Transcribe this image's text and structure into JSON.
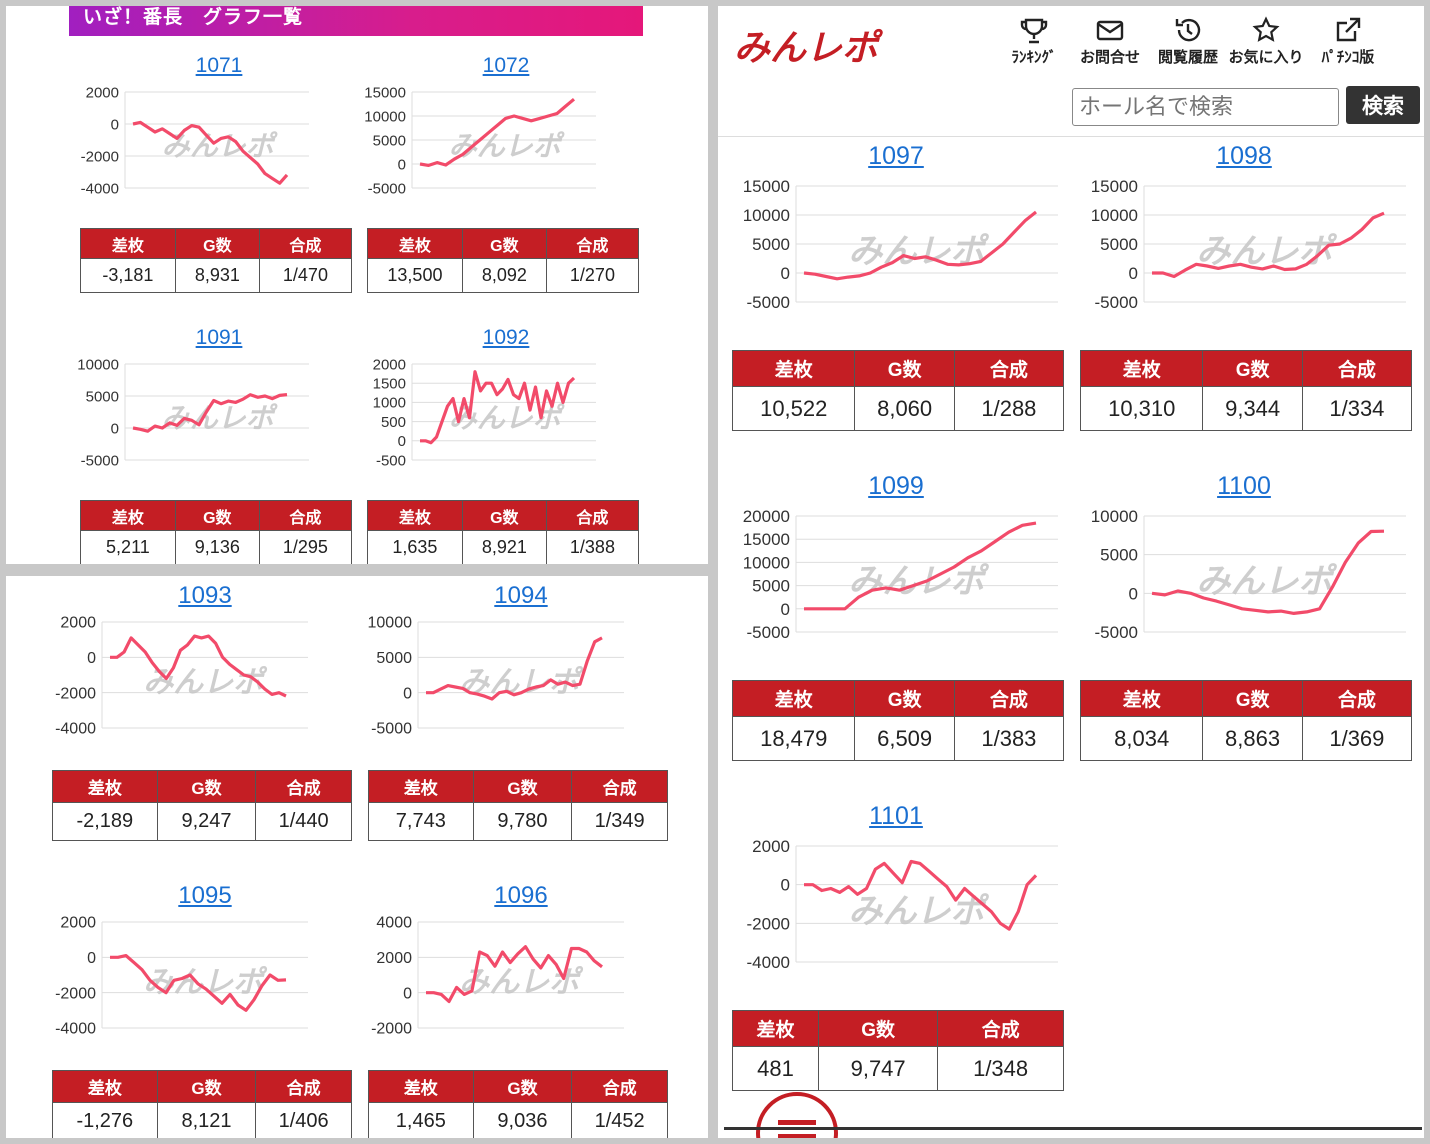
{
  "left_header": {
    "title": "いざ！番長　グラフ一覧"
  },
  "watermark": "みんレポ",
  "table_headers": [
    "差枚",
    "G数",
    "合成"
  ],
  "site": {
    "logo": "みんレポ",
    "nav": [
      {
        "label": "ﾗﾝｷﾝｸﾞ",
        "icon": "trophy-icon"
      },
      {
        "label": "お問合せ",
        "icon": "mail-icon"
      },
      {
        "label": "閲覧履歴",
        "icon": "history-icon"
      },
      {
        "label": "お気に入り",
        "icon": "star-icon"
      },
      {
        "label": "ﾊﾟﾁﾝｺ版",
        "icon": "external-link-icon"
      }
    ],
    "search_placeholder": "ホール名で検索",
    "search_button": "検索"
  },
  "colors": {
    "line": "#f24b6a",
    "table_header": "#c41e24",
    "link": "#1a6fd1"
  },
  "machines": [
    {
      "id": "1071",
      "diff": "-3,181",
      "games": "8,931",
      "ratio": "1/470"
    },
    {
      "id": "1072",
      "diff": "13,500",
      "games": "8,092",
      "ratio": "1/270"
    },
    {
      "id": "1091",
      "diff": "5,211",
      "games": "9,136",
      "ratio": "1/295"
    },
    {
      "id": "1092",
      "diff": "1,635",
      "games": "8,921",
      "ratio": "1/388"
    },
    {
      "id": "1093",
      "diff": "-2,189",
      "games": "9,247",
      "ratio": "1/440"
    },
    {
      "id": "1094",
      "diff": "7,743",
      "games": "9,780",
      "ratio": "1/349"
    },
    {
      "id": "1095",
      "diff": "-1,276",
      "games": "8,121",
      "ratio": "1/406"
    },
    {
      "id": "1096",
      "diff": "1,465",
      "games": "9,036",
      "ratio": "1/452"
    },
    {
      "id": "1097",
      "diff": "10,522",
      "games": "8,060",
      "ratio": "1/288"
    },
    {
      "id": "1098",
      "diff": "10,310",
      "games": "9,344",
      "ratio": "1/334"
    },
    {
      "id": "1099",
      "diff": "18,479",
      "games": "6,509",
      "ratio": "1/383"
    },
    {
      "id": "1100",
      "diff": "8,034",
      "games": "8,863",
      "ratio": "1/369"
    },
    {
      "id": "1101",
      "diff": "481",
      "games": "9,747",
      "ratio": "1/348"
    }
  ],
  "chart_data": [
    {
      "type": "line",
      "id": "1071",
      "ylim": [
        -4000,
        2000
      ],
      "ticks": [
        "2000",
        "0",
        "-2000",
        "-4000"
      ],
      "tickvals": [
        2000,
        0,
        -2000,
        -4000
      ],
      "values": [
        0,
        100,
        -200,
        -500,
        -300,
        -600,
        -900,
        -400,
        -100,
        -200,
        -700,
        -1200,
        -900,
        -800,
        -1100,
        -1700,
        -2100,
        -2500,
        -3100,
        -3400,
        -3700,
        -3181
      ]
    },
    {
      "type": "line",
      "id": "1072",
      "ylim": [
        -5000,
        15000
      ],
      "ticks": [
        "15000",
        "10000",
        "5000",
        "0",
        "-5000"
      ],
      "tickvals": [
        15000,
        10000,
        5000,
        0,
        -5000
      ],
      "values": [
        0,
        -300,
        300,
        -200,
        1000,
        2000,
        3500,
        5000,
        6500,
        8000,
        9500,
        10000,
        9500,
        9000,
        9500,
        10000,
        10500,
        12000,
        13500
      ]
    },
    {
      "type": "line",
      "id": "1091",
      "ylim": [
        -5000,
        10000
      ],
      "ticks": [
        "10000",
        "5000",
        "0",
        "-5000"
      ],
      "tickvals": [
        10000,
        5000,
        0,
        -5000
      ],
      "values": [
        0,
        -200,
        -500,
        300,
        0,
        800,
        400,
        1500,
        1200,
        500,
        2500,
        4300,
        3800,
        4200,
        4000,
        4500,
        5200,
        4800,
        5000,
        4600,
        5100,
        5211
      ]
    },
    {
      "type": "line",
      "id": "1092",
      "ylim": [
        -500,
        2000
      ],
      "ticks": [
        "2000",
        "1500",
        "1000",
        "500",
        "0",
        "-500"
      ],
      "tickvals": [
        2000,
        1500,
        1000,
        500,
        0,
        -500
      ],
      "values": [
        0,
        0,
        -50,
        100,
        500,
        900,
        1100,
        500,
        1100,
        600,
        1800,
        1300,
        1500,
        1500,
        1200,
        1350,
        1600,
        1200,
        1100,
        1500,
        800,
        1400,
        600,
        1300,
        900,
        1500,
        1000,
        1500,
        1635
      ]
    },
    {
      "type": "line",
      "id": "1093",
      "ylim": [
        -4000,
        2000
      ],
      "ticks": [
        "2000",
        "0",
        "-2000",
        "-4000"
      ],
      "tickvals": [
        2000,
        0,
        -2000,
        -4000
      ],
      "values": [
        0,
        0,
        300,
        1100,
        700,
        300,
        -300,
        -800,
        -1200,
        -600,
        400,
        700,
        1200,
        1100,
        1200,
        800,
        0,
        -400,
        -700,
        -1000,
        -1100,
        -1400,
        -1800,
        -2100,
        -2000,
        -2189
      ]
    },
    {
      "type": "line",
      "id": "1094",
      "ylim": [
        -5000,
        10000
      ],
      "ticks": [
        "10000",
        "5000",
        "0",
        "-5000"
      ],
      "tickvals": [
        10000,
        5000,
        0,
        -5000
      ],
      "values": [
        0,
        0,
        500,
        1000,
        800,
        600,
        0,
        -200,
        -500,
        -900,
        0,
        200,
        -300,
        0,
        500,
        800,
        1000,
        1800,
        1200,
        1500,
        1000,
        1200,
        4500,
        7200,
        7743
      ]
    },
    {
      "type": "line",
      "id": "1095",
      "ylim": [
        -4000,
        2000
      ],
      "ticks": [
        "2000",
        "0",
        "-2000",
        "-4000"
      ],
      "tickvals": [
        2000,
        0,
        -2000,
        -4000
      ],
      "values": [
        0,
        0,
        100,
        -300,
        -700,
        -1300,
        -1700,
        -2000,
        -1300,
        -1200,
        -1000,
        -1500,
        -1800,
        -2200,
        -2600,
        -2100,
        -2700,
        -3000,
        -2400,
        -1600,
        -1000,
        -1300,
        -1276
      ]
    },
    {
      "type": "line",
      "id": "1096",
      "ylim": [
        -2000,
        4000
      ],
      "ticks": [
        "4000",
        "2000",
        "0",
        "-2000"
      ],
      "tickvals": [
        4000,
        2000,
        0,
        -2000
      ],
      "values": [
        0,
        0,
        -100,
        -500,
        300,
        -100,
        100,
        2300,
        2100,
        1500,
        2300,
        1700,
        2200,
        2600,
        1900,
        1400,
        2100,
        1600,
        800,
        2500,
        2500,
        2300,
        1800,
        1465
      ]
    },
    {
      "type": "line",
      "id": "1097",
      "ylim": [
        -5000,
        15000
      ],
      "ticks": [
        "15000",
        "10000",
        "5000",
        "0",
        "-5000"
      ],
      "tickvals": [
        15000,
        10000,
        5000,
        0,
        -5000
      ],
      "values": [
        0,
        -200,
        -600,
        -1000,
        -700,
        -500,
        0,
        1000,
        1800,
        3000,
        2500,
        2800,
        2200,
        1500,
        1400,
        1600,
        2000,
        3500,
        5000,
        7000,
        9000,
        10522
      ]
    },
    {
      "type": "line",
      "id": "1098",
      "ylim": [
        -5000,
        15000
      ],
      "ticks": [
        "15000",
        "10000",
        "5000",
        "0",
        "-5000"
      ],
      "tickvals": [
        15000,
        10000,
        5000,
        0,
        -5000
      ],
      "values": [
        0,
        0,
        -600,
        500,
        1500,
        1200,
        800,
        1200,
        1500,
        1000,
        700,
        1200,
        600,
        700,
        1500,
        3000,
        4800,
        5000,
        6000,
        7500,
        9500,
        10310
      ]
    },
    {
      "type": "line",
      "id": "1099",
      "ylim": [
        -5000,
        20000
      ],
      "ticks": [
        "20000",
        "15000",
        "10000",
        "5000",
        "0",
        "-5000"
      ],
      "tickvals": [
        20000,
        15000,
        10000,
        5000,
        0,
        -5000
      ],
      "values": [
        0,
        0,
        0,
        0,
        2500,
        4000,
        4500,
        4000,
        5000,
        6000,
        7500,
        9000,
        11000,
        12500,
        14500,
        16500,
        18000,
        18479
      ]
    },
    {
      "type": "line",
      "id": "1100",
      "ylim": [
        -5000,
        10000
      ],
      "ticks": [
        "10000",
        "5000",
        "0",
        "-5000"
      ],
      "tickvals": [
        10000,
        5000,
        0,
        -5000
      ],
      "values": [
        0,
        -200,
        300,
        0,
        -600,
        -1000,
        -1500,
        -2000,
        -2200,
        -2400,
        -2300,
        -2600,
        -2400,
        -2000,
        800,
        4000,
        6500,
        8000,
        8034
      ]
    },
    {
      "type": "line",
      "id": "1101",
      "ylim": [
        -4000,
        2000
      ],
      "ticks": [
        "2000",
        "0",
        "-2000",
        "-4000"
      ],
      "tickvals": [
        2000,
        0,
        -2000,
        -4000
      ],
      "values": [
        0,
        0,
        -300,
        -200,
        -400,
        -100,
        -500,
        -200,
        800,
        1100,
        600,
        100,
        1200,
        1100,
        700,
        300,
        -100,
        -800,
        -200,
        -600,
        -1000,
        -1400,
        -2000,
        -2300,
        -1400,
        0,
        481
      ]
    }
  ]
}
